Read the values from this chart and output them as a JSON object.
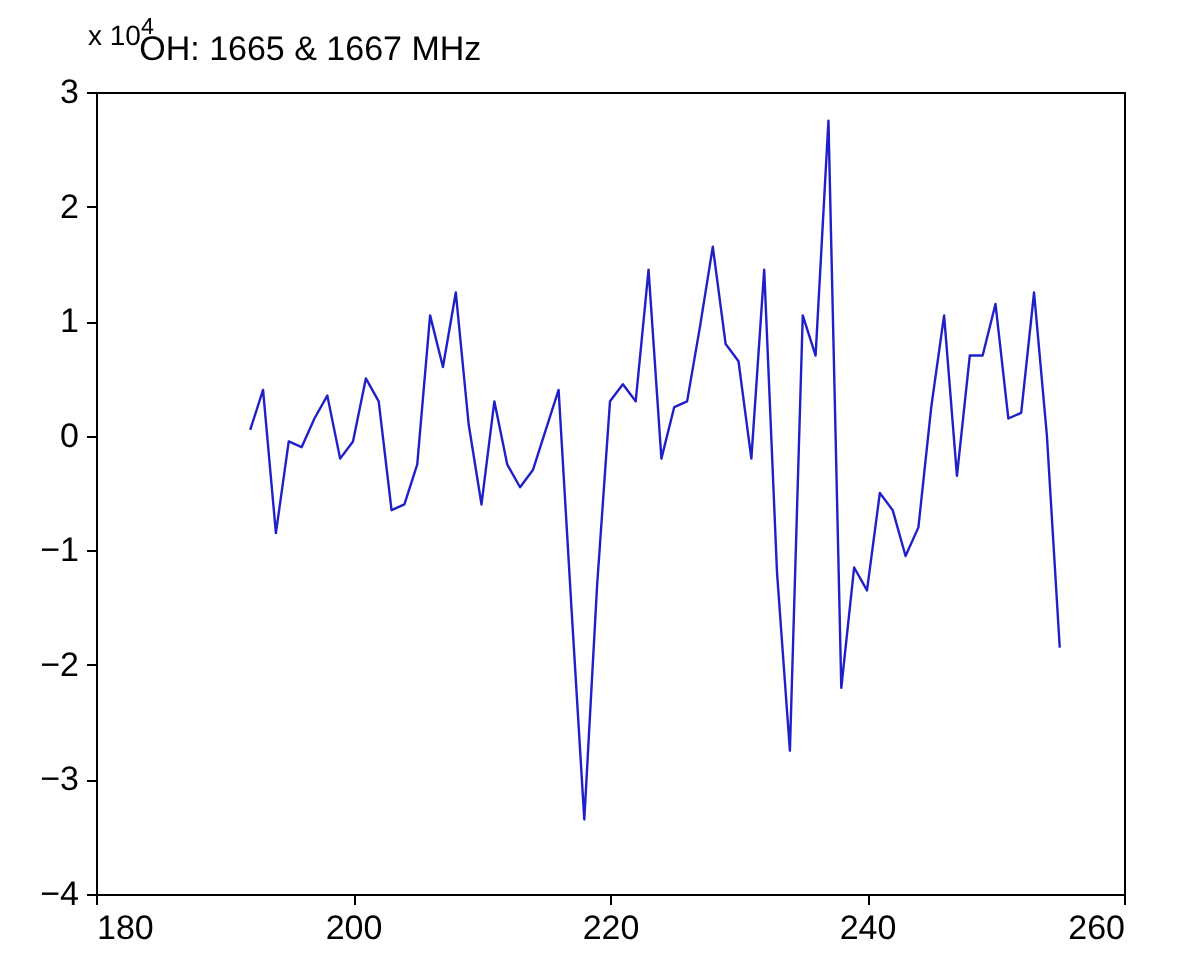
{
  "chart_data": {
    "type": "line",
    "title": "OH:  1665 & 1667 MHz",
    "annotations": [
      "x 10$^{4}$"
    ],
    "x": [
      192,
      193,
      194,
      195,
      196,
      197,
      198,
      199,
      200,
      201,
      202,
      203,
      204,
      205,
      206,
      207,
      208,
      209,
      210,
      211,
      212,
      213,
      214,
      215,
      216,
      217,
      218,
      219,
      220,
      221,
      222,
      223,
      224,
      225,
      226,
      227,
      228,
      229,
      230,
      231,
      232,
      233,
      234,
      235,
      236,
      237,
      238,
      239,
      240,
      241,
      242,
      243,
      244,
      245,
      246,
      247,
      248,
      249,
      250,
      251,
      252,
      253,
      254,
      255
    ],
    "series": [
      {
        "color": "#2020c8",
        "values": [
          0.05,
          0.4,
          -0.85,
          -0.05,
          -0.1,
          0.15,
          0.35,
          -0.2,
          -0.05,
          0.5,
          0.3,
          -0.65,
          -0.6,
          -0.25,
          1.05,
          0.6,
          1.25,
          0.1,
          -0.6,
          0.3,
          -0.25,
          -0.45,
          -0.3,
          0.05,
          0.4,
          -1.5,
          -3.35,
          -1.3,
          0.3,
          0.45,
          0.3,
          1.45,
          -0.2,
          0.25,
          0.3,
          0.95,
          1.65,
          0.8,
          0.65,
          -0.2,
          1.45,
          -1.2,
          -2.75,
          1.05,
          0.7,
          2.75,
          -2.2,
          -1.15,
          -1.35,
          -0.5,
          -0.65,
          -1.05,
          -0.8,
          0.25,
          1.05,
          -0.35,
          0.7,
          0.7,
          1.15,
          0.15,
          0.2,
          1.25,
          0.0,
          -1.85
        ]
      }
    ],
    "xlim": [
      180,
      260
    ],
    "xticks": [
      180,
      200,
      220,
      240,
      260
    ],
    "ylim": [
      -4,
      3
    ],
    "yticks": [
      -4,
      -3,
      -2,
      -1,
      0,
      1,
      2,
      3
    ]
  }
}
